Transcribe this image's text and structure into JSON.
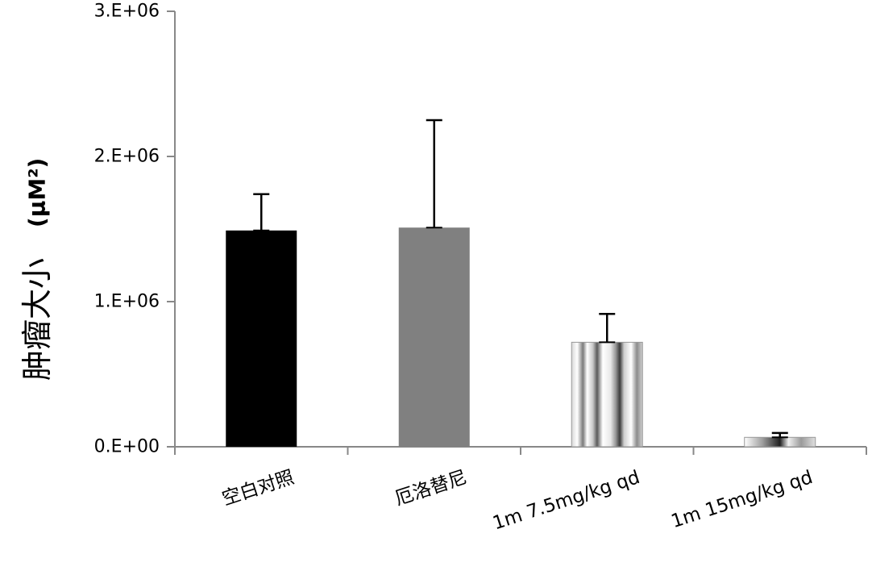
{
  "chart_data": {
    "type": "bar",
    "title": "",
    "xlabel": "",
    "ylabel": "肿瘤大小",
    "ylabel_unit": "(μM²)",
    "categories": [
      "空白对照",
      "厄洛替尼",
      "1m 7.5mg/kg qd",
      "1m 15mg/kg qd"
    ],
    "values": [
      1490000,
      1510000,
      720000,
      65000
    ],
    "error_upper": [
      1740000,
      2250000,
      915000,
      95000
    ],
    "fills": [
      "solid-black",
      "solid-gray",
      "vertical-stripes",
      "horizontal-gradient"
    ],
    "ylim": [
      0,
      3000000
    ],
    "yticks": [
      0,
      1000000,
      2000000,
      3000000
    ],
    "ytick_labels": [
      "0.E+00",
      "1.E+06",
      "2.E+06",
      "3.E+06"
    ],
    "grid": false,
    "legend": "none",
    "colors": {
      "bar_black": "#000000",
      "bar_gray": "#808080",
      "axis": "#888888",
      "error_bar": "#000000"
    }
  }
}
